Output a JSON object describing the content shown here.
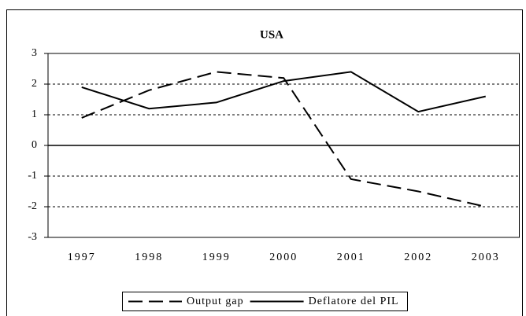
{
  "chart_data": {
    "type": "line",
    "title": "USA",
    "categories": [
      "1997",
      "1998",
      "1999",
      "2000",
      "2001",
      "2002",
      "2003"
    ],
    "series": [
      {
        "name": "Output gap",
        "color": "#000000",
        "dash": true,
        "values": [
          0.9,
          1.8,
          2.4,
          2.2,
          -1.1,
          -1.5,
          -2.0
        ]
      },
      {
        "name": "Deflatore del PIL",
        "color": "#000000",
        "dash": false,
        "values": [
          1.9,
          1.2,
          1.4,
          2.1,
          2.4,
          1.1,
          1.6
        ]
      }
    ],
    "ylim": [
      -3,
      3
    ],
    "yticks": [
      -3,
      -2,
      -1,
      0,
      1,
      2,
      3
    ],
    "grid": true
  }
}
